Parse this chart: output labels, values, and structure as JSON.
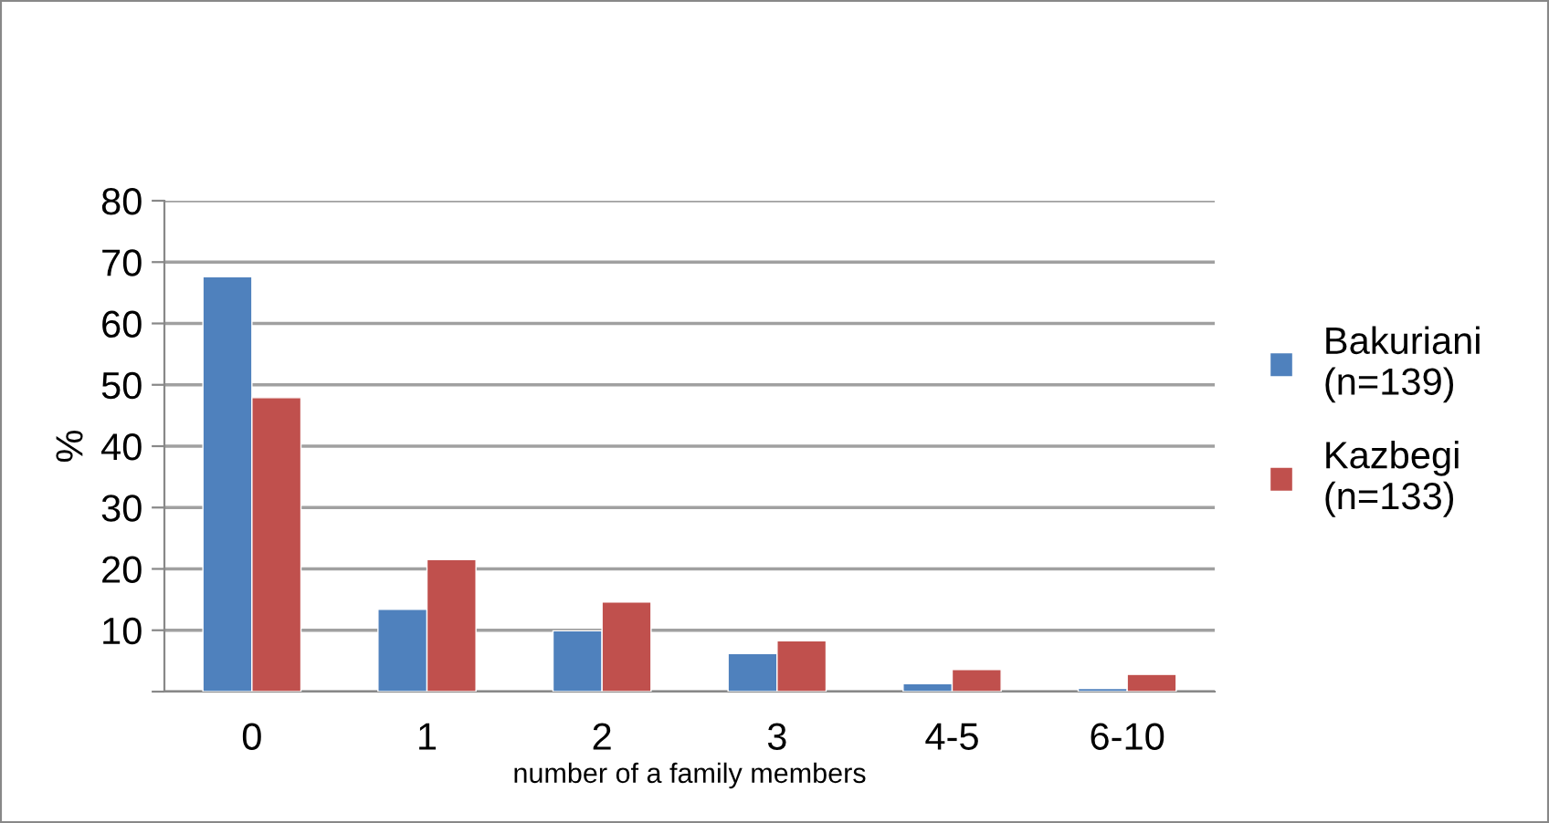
{
  "chart_data": {
    "type": "bar",
    "xlabel": "number of a family members",
    "ylabel": "%",
    "categories": [
      "0",
      "1",
      "2",
      "3",
      "4-5",
      "6-10"
    ],
    "series": [
      {
        "name": "Bakuriani\n(n=139)",
        "color": "#4f81bd",
        "values": [
          67.6,
          13.4,
          9.9,
          6.2,
          1.3,
          0.5
        ]
      },
      {
        "name": "Kazbegi\n(n=133)",
        "color": "#c0504d",
        "values": [
          47.9,
          21.5,
          14.6,
          8.3,
          3.6,
          2.8
        ]
      }
    ],
    "ylim": [
      0,
      80
    ],
    "yticks": [
      {
        "value": 0,
        "label": null
      },
      10,
      20,
      30,
      40,
      50,
      60,
      70,
      80
    ],
    "grid": "y",
    "legend": "right"
  }
}
